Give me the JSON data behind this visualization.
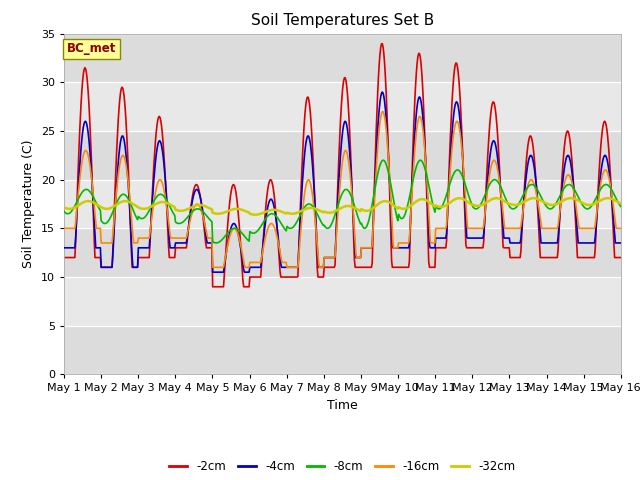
{
  "title": "Soil Temperatures Set B",
  "xlabel": "Time",
  "ylabel": "Soil Temperature (C)",
  "annotation": "BC_met",
  "ylim": [
    0,
    35
  ],
  "yticks": [
    0,
    5,
    10,
    15,
    20,
    25,
    30,
    35
  ],
  "x_labels": [
    "May 1",
    "May 2",
    "May 3",
    "May 4",
    "May 5",
    "May 6",
    "May 7",
    "May 8",
    "May 9",
    "May 10",
    "May 11",
    "May 12",
    "May 13",
    "May 14",
    "May 15",
    "May 16"
  ],
  "series": {
    "-2cm": {
      "color": "#DD0000",
      "lw": 1.2
    },
    "-4cm": {
      "color": "#0000CC",
      "lw": 1.2
    },
    "-8cm": {
      "color": "#00BB00",
      "lw": 1.2
    },
    "-16cm": {
      "color": "#FF8800",
      "lw": 1.2
    },
    "-32cm": {
      "color": "#CCCC00",
      "lw": 1.8
    }
  },
  "n_days": 15,
  "pts_per_day": 48,
  "axes_bg_light": "#F0F0F0",
  "axes_bg_dark": "#E0E0E0",
  "fig_bg": "#FFFFFF"
}
